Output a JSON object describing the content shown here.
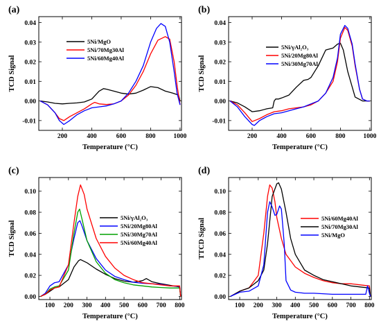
{
  "chart_data": [
    {
      "panel": "(a)",
      "type": "line",
      "xlabel": "Temperature (°C)",
      "ylabel": "TCD Signal",
      "xlim": [
        40,
        1010
      ],
      "ylim": [
        -0.015,
        0.043
      ],
      "xticks": [
        200,
        400,
        600,
        800,
        1000
      ],
      "yticks": [
        -0.01,
        0.0,
        0.01,
        0.02,
        0.03,
        0.04
      ],
      "ytick_labels": [
        "-0.01",
        "0.00",
        "0.01",
        "0.02",
        "0.03",
        "0.04"
      ],
      "legend_position": "center",
      "series": [
        {
          "name": "5Ni/MgO",
          "color": "#000000",
          "x": [
            50,
            100,
            150,
            200,
            250,
            300,
            350,
            400,
            450,
            480,
            500,
            550,
            600,
            650,
            700,
            750,
            800,
            850,
            900,
            950,
            990,
            1000
          ],
          "y": [
            0.0,
            -0.0005,
            -0.0012,
            -0.0015,
            -0.0012,
            -0.001,
            -0.0005,
            0.001,
            0.005,
            0.0063,
            0.006,
            0.005,
            0.004,
            0.0035,
            0.004,
            0.0055,
            0.0073,
            0.0068,
            0.005,
            0.004,
            0.003,
            0.0
          ]
        },
        {
          "name": "5Ni/70Mg30Al",
          "color": "#ff0000",
          "x": [
            50,
            100,
            150,
            180,
            210,
            250,
            300,
            350,
            400,
            420,
            450,
            500,
            550,
            600,
            650,
            700,
            750,
            800,
            850,
            900,
            930,
            960,
            980,
            1000
          ],
          "y": [
            0.0,
            -0.002,
            -0.006,
            -0.009,
            -0.01,
            -0.008,
            -0.006,
            -0.004,
            -0.0015,
            -0.0007,
            -0.0015,
            -0.0018,
            -0.0015,
            0.0,
            0.003,
            0.008,
            0.015,
            0.024,
            0.031,
            0.0328,
            0.0315,
            0.02,
            0.008,
            -0.002
          ]
        },
        {
          "name": "5Ni/60Mg40Al",
          "color": "#0000ff",
          "x": [
            50,
            100,
            150,
            180,
            210,
            250,
            300,
            350,
            400,
            450,
            500,
            550,
            600,
            650,
            700,
            750,
            800,
            840,
            870,
            900,
            930,
            960,
            980,
            1000
          ],
          "y": [
            0.0,
            -0.002,
            -0.006,
            -0.01,
            -0.012,
            -0.01,
            -0.007,
            -0.005,
            -0.0035,
            -0.003,
            -0.0025,
            -0.0015,
            0.0,
            0.004,
            0.01,
            0.018,
            0.03,
            0.037,
            0.0395,
            0.038,
            0.03,
            0.015,
            0.004,
            -0.002
          ]
        }
      ]
    },
    {
      "panel": "(b)",
      "type": "line",
      "xlabel": "Temperature (°C)",
      "ylabel": "TCD Signal",
      "xlim": [
        40,
        1010
      ],
      "ylim": [
        -0.015,
        0.043
      ],
      "xticks": [
        200,
        400,
        600,
        800,
        1000
      ],
      "yticks": [
        -0.01,
        0.0,
        0.01,
        0.02,
        0.03,
        0.04
      ],
      "ytick_labels": [
        "-0.01",
        "0.00",
        "0.01",
        "0.02",
        "0.03",
        "0.04"
      ],
      "legend_position": "center-left",
      "series": [
        {
          "name": "5Ni/γAl₂O₃",
          "color": "#000000",
          "x": [
            50,
            100,
            150,
            200,
            250,
            300,
            340,
            350,
            360,
            380,
            400,
            450,
            500,
            550,
            580,
            600,
            650,
            700,
            750,
            780,
            800,
            820,
            850,
            900,
            950,
            1000
          ],
          "y": [
            0.0,
            -0.001,
            -0.003,
            -0.0055,
            -0.005,
            -0.004,
            -0.0035,
            0.0,
            0.001,
            0.001,
            0.0015,
            0.003,
            0.007,
            0.0105,
            0.011,
            0.012,
            0.018,
            0.026,
            0.027,
            0.029,
            0.0295,
            0.026,
            0.015,
            0.002,
            0.0,
            0.0
          ]
        },
        {
          "name": "5Ni/20Mg80Al",
          "color": "#ff0000",
          "x": [
            50,
            100,
            150,
            200,
            250,
            300,
            350,
            400,
            450,
            500,
            550,
            600,
            650,
            700,
            750,
            780,
            800,
            830,
            850,
            880,
            900,
            930,
            950,
            980,
            1000
          ],
          "y": [
            0.0,
            -0.002,
            -0.006,
            -0.0105,
            -0.009,
            -0.007,
            -0.0055,
            -0.005,
            -0.004,
            -0.0035,
            -0.003,
            -0.002,
            0.0,
            0.004,
            0.01,
            0.02,
            0.032,
            0.0375,
            0.036,
            0.028,
            0.018,
            0.006,
            0.001,
            0.0,
            0.0
          ]
        },
        {
          "name": "5Ni/30Mg70Al",
          "color": "#0000ff",
          "x": [
            50,
            100,
            150,
            200,
            215,
            250,
            300,
            350,
            400,
            450,
            500,
            550,
            600,
            650,
            700,
            750,
            780,
            800,
            830,
            850,
            880,
            900,
            930,
            950,
            980,
            1000
          ],
          "y": [
            0.0,
            -0.003,
            -0.008,
            -0.012,
            -0.0125,
            -0.01,
            -0.008,
            -0.0065,
            -0.006,
            -0.005,
            -0.004,
            -0.003,
            -0.0015,
            0.0,
            0.004,
            0.012,
            0.022,
            0.034,
            0.0385,
            0.037,
            0.029,
            0.019,
            0.006,
            0.001,
            0.0,
            0.0
          ]
        }
      ]
    },
    {
      "panel": "(c)",
      "type": "line",
      "xlabel": "Temperature (°C)",
      "ylabel": "TCD Signal",
      "xlim": [
        40,
        810
      ],
      "ylim": [
        -0.003,
        0.113
      ],
      "xticks": [
        100,
        200,
        300,
        400,
        500,
        600,
        700,
        800
      ],
      "yticks": [
        0.0,
        0.02,
        0.04,
        0.06,
        0.08,
        0.1
      ],
      "ytick_labels": [
        "0.00",
        "0.02",
        "0.04",
        "0.06",
        "0.08",
        "0.10"
      ],
      "legend_position": "center-right",
      "series": [
        {
          "name": "5Ni/γAl₂O₃",
          "color": "#000000",
          "x": [
            50,
            75,
            100,
            125,
            150,
            200,
            230,
            255,
            265,
            300,
            350,
            400,
            450,
            500,
            550,
            600,
            620,
            650,
            700,
            750,
            800,
            805
          ],
          "y": [
            0.0,
            0.002,
            0.005,
            0.008,
            0.009,
            0.016,
            0.028,
            0.034,
            0.035,
            0.032,
            0.026,
            0.021,
            0.017,
            0.0145,
            0.0135,
            0.015,
            0.017,
            0.014,
            0.012,
            0.0105,
            0.009,
            0.0
          ]
        },
        {
          "name": "5Ni/20Mg80Al",
          "color": "#0000ff",
          "x": [
            50,
            75,
            100,
            125,
            150,
            200,
            230,
            250,
            262,
            275,
            300,
            350,
            400,
            450,
            500,
            550,
            600,
            650,
            700,
            750,
            800,
            805
          ],
          "y": [
            0.0,
            0.003,
            0.01,
            0.013,
            0.014,
            0.03,
            0.055,
            0.07,
            0.072,
            0.066,
            0.053,
            0.036,
            0.025,
            0.019,
            0.016,
            0.0135,
            0.0125,
            0.012,
            0.0115,
            0.01,
            0.0095,
            0.0
          ]
        },
        {
          "name": "5Ni/30Mg70Al",
          "color": "#00a000",
          "x": [
            50,
            75,
            100,
            125,
            150,
            200,
            230,
            250,
            260,
            275,
            300,
            350,
            400,
            450,
            500,
            550,
            600,
            650,
            700,
            750,
            800,
            805
          ],
          "y": [
            0.0,
            0.002,
            0.007,
            0.009,
            0.01,
            0.025,
            0.06,
            0.08,
            0.083,
            0.072,
            0.053,
            0.033,
            0.022,
            0.016,
            0.013,
            0.011,
            0.01,
            0.009,
            0.0085,
            0.008,
            0.008,
            0.0
          ]
        },
        {
          "name": "5Ni/60Mg40Al",
          "color": "#ff0000",
          "x": [
            50,
            75,
            100,
            125,
            150,
            200,
            230,
            250,
            265,
            285,
            300,
            350,
            400,
            450,
            500,
            550,
            600,
            650,
            700,
            750,
            800,
            805
          ],
          "y": [
            0.0,
            0.002,
            0.006,
            0.008,
            0.009,
            0.03,
            0.07,
            0.095,
            0.106,
            0.097,
            0.083,
            0.055,
            0.038,
            0.027,
            0.02,
            0.016,
            0.013,
            0.012,
            0.011,
            0.01,
            0.01,
            0.0
          ]
        }
      ]
    },
    {
      "panel": "(d)",
      "type": "line",
      "xlabel": "Temperature (°C)",
      "ylabel": "TTCD Signal",
      "xlim": [
        40,
        810
      ],
      "ylim": [
        -0.003,
        0.113
      ],
      "xticks": [
        100,
        200,
        300,
        400,
        500,
        600,
        700,
        800
      ],
      "yticks": [
        0.0,
        0.02,
        0.04,
        0.06,
        0.08,
        0.1
      ],
      "ytick_labels": [
        "0.00",
        "0.02",
        "0.04",
        "0.06",
        "0.08",
        "0.10"
      ],
      "legend_position": "center-right",
      "series": [
        {
          "name": "5Ni/60Mg40Al",
          "color": "#ff0000",
          "x": [
            50,
            100,
            150,
            200,
            230,
            250,
            262,
            275,
            290,
            300,
            325,
            350,
            400,
            450,
            500,
            550,
            600,
            650,
            700,
            750,
            800,
            805
          ],
          "y": [
            0.0,
            0.005,
            0.008,
            0.02,
            0.06,
            0.095,
            0.106,
            0.103,
            0.09,
            0.075,
            0.055,
            0.04,
            0.028,
            0.022,
            0.018,
            0.015,
            0.013,
            0.012,
            0.012,
            0.011,
            0.01,
            0.0
          ]
        },
        {
          "name": "5Ni/70Mg30Al",
          "color": "#000000",
          "x": [
            50,
            100,
            150,
            200,
            230,
            250,
            275,
            300,
            310,
            325,
            350,
            375,
            400,
            450,
            500,
            550,
            600,
            650,
            700,
            750,
            800,
            805
          ],
          "y": [
            0.0,
            0.005,
            0.008,
            0.015,
            0.025,
            0.05,
            0.095,
            0.107,
            0.108,
            0.102,
            0.08,
            0.055,
            0.04,
            0.025,
            0.02,
            0.016,
            0.014,
            0.012,
            0.01,
            0.009,
            0.008,
            0.0
          ]
        },
        {
          "name": "5Ni/MgO",
          "color": "#0000ff",
          "x": [
            50,
            100,
            150,
            200,
            230,
            250,
            262,
            275,
            290,
            300,
            315,
            325,
            340,
            350,
            375,
            400,
            450,
            500,
            600,
            700,
            780,
            790,
            800,
            805
          ],
          "y": [
            0.0,
            0.004,
            0.005,
            0.01,
            0.03,
            0.08,
            0.09,
            0.085,
            0.077,
            0.078,
            0.086,
            0.083,
            0.05,
            0.015,
            0.006,
            0.004,
            0.003,
            0.003,
            0.002,
            0.002,
            0.002,
            0.01,
            0.003,
            0.0
          ]
        }
      ]
    }
  ]
}
